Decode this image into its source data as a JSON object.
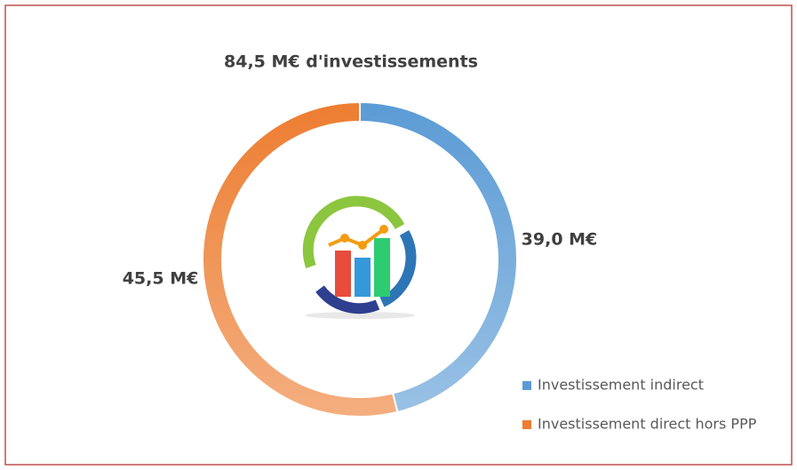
{
  "chart_data": {
    "type": "donut",
    "title": "84,5 M€ d'investissements",
    "categories": [
      "Investissement indirect",
      "Investissement direct hors PPP"
    ],
    "values": [
      39.0,
      45.5
    ],
    "value_labels": [
      "39,0 M€",
      "45,5 M€"
    ],
    "colors": [
      "#5b9bd5",
      "#ed7d31"
    ]
  }
}
